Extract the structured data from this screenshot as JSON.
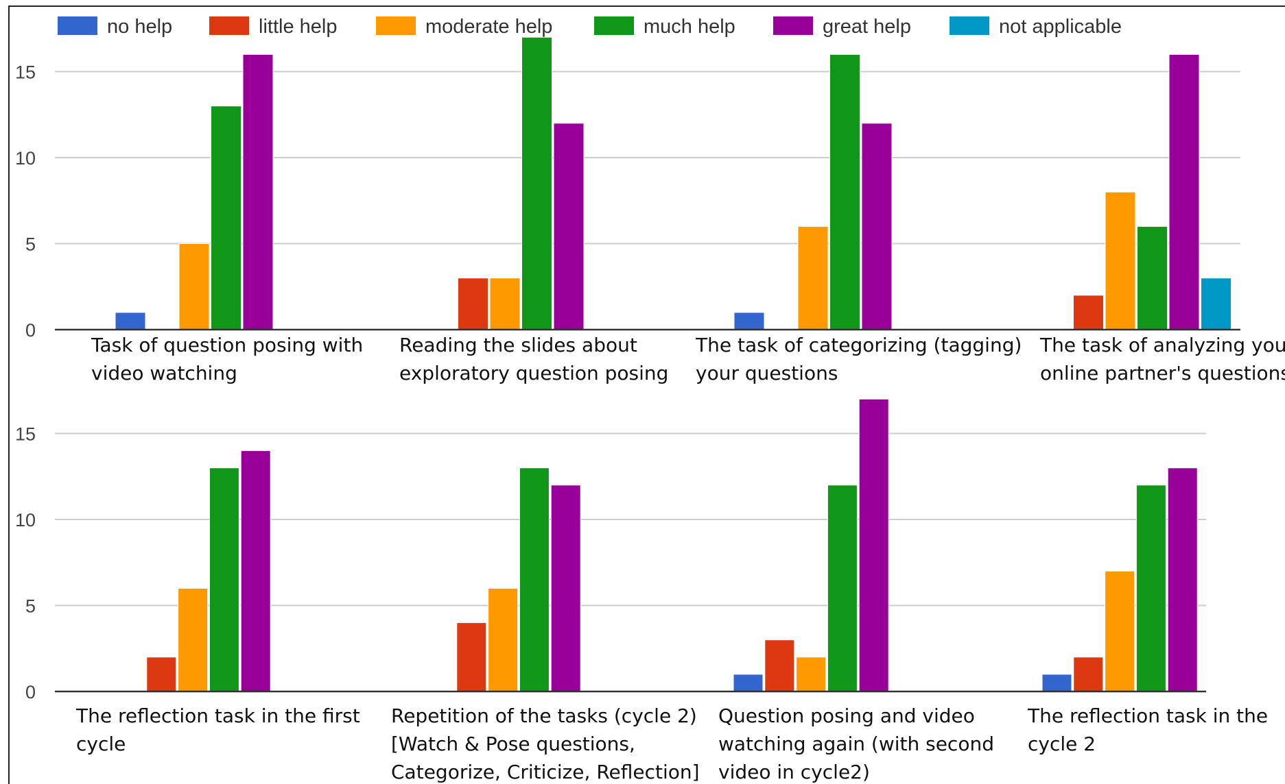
{
  "chart_data": [
    {
      "type": "bar",
      "categories": [
        [
          "Task of question posing with",
          "video watching"
        ],
        [
          "Reading the slides about",
          "exploratory question posing"
        ],
        [
          "The task of categorizing (tagging)",
          "your questions"
        ],
        [
          "The task of analyzing your",
          "online partner's questions"
        ]
      ],
      "series": [
        {
          "name": "no help",
          "values": [
            1,
            0,
            1,
            0
          ]
        },
        {
          "name": "little help",
          "values": [
            0,
            3,
            0,
            2
          ]
        },
        {
          "name": "moderate help",
          "values": [
            5,
            3,
            6,
            8
          ]
        },
        {
          "name": "much help",
          "values": [
            13,
            17,
            16,
            6
          ]
        },
        {
          "name": "great help",
          "values": [
            16,
            12,
            12,
            16
          ]
        },
        {
          "name": "not applicable",
          "values": [
            0,
            0,
            0,
            3
          ]
        }
      ],
      "yticks": [
        0,
        5,
        10,
        15
      ],
      "ylim": [
        0,
        17
      ],
      "grid": true
    },
    {
      "type": "bar",
      "categories": [
        [
          "The reflection task in the first",
          "cycle"
        ],
        [
          "Repetition of the tasks (cycle 2)",
          "[Watch & Pose questions,",
          "Categorize, Criticize, Reflection]"
        ],
        [
          "Question posing and video",
          "watching again (with second",
          "video in cycle2)"
        ],
        [
          "The reflection task in the",
          "cycle 2"
        ]
      ],
      "series": [
        {
          "name": "no help",
          "values": [
            0,
            0,
            1,
            1
          ]
        },
        {
          "name": "little help",
          "values": [
            2,
            4,
            3,
            2
          ]
        },
        {
          "name": "moderate help",
          "values": [
            6,
            6,
            2,
            7
          ]
        },
        {
          "name": "much help",
          "values": [
            13,
            13,
            12,
            12
          ]
        },
        {
          "name": "great help",
          "values": [
            14,
            12,
            17,
            13
          ]
        },
        {
          "name": "not applicable",
          "values": [
            0,
            0,
            0,
            0
          ]
        }
      ],
      "yticks": [
        0,
        5,
        10,
        15
      ],
      "ylim": [
        0,
        17
      ],
      "grid": true
    }
  ],
  "legend": {
    "placement": "top-left",
    "items": [
      {
        "label": "no help",
        "color": "#3366cc"
      },
      {
        "label": "little help",
        "color": "#dc3912"
      },
      {
        "label": "moderate help",
        "color": "#ff9900"
      },
      {
        "label": "much help",
        "color": "#109618"
      },
      {
        "label": "great help",
        "color": "#990099"
      },
      {
        "label": "not applicable",
        "color": "#0099c6"
      }
    ]
  }
}
